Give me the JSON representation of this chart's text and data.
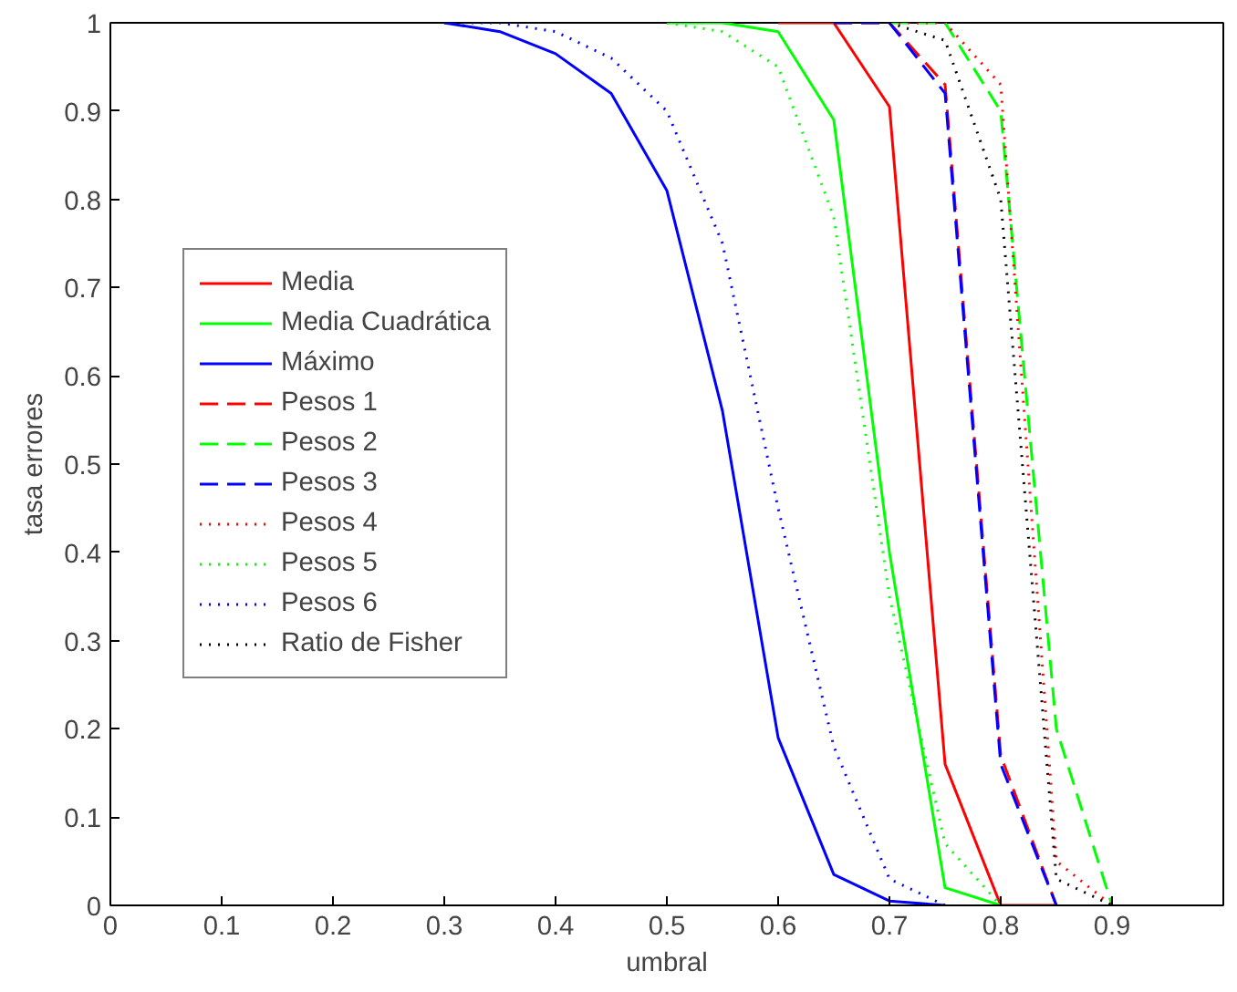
{
  "chart_data": {
    "type": "line",
    "xlabel": "umbral",
    "ylabel": "tasa errores",
    "xlim": [
      0,
      1
    ],
    "ylim": [
      0,
      1
    ],
    "xticks": [
      0,
      0.1,
      0.2,
      0.3,
      0.4,
      0.5,
      0.6,
      0.7,
      0.8,
      0.9
    ],
    "yticks": [
      0,
      0.1,
      0.2,
      0.3,
      0.4,
      0.5,
      0.6,
      0.7,
      0.8,
      0.9,
      1
    ],
    "grid": false,
    "legend": "left",
    "x": [
      0.3,
      0.35,
      0.4,
      0.45,
      0.5,
      0.55,
      0.6,
      0.65,
      0.7,
      0.75,
      0.8,
      0.85,
      0.9
    ],
    "series": [
      {
        "name": "Media",
        "color": "#ff0000",
        "line_style": "solid",
        "values": [
          null,
          null,
          null,
          null,
          null,
          null,
          1,
          1,
          0.905,
          0.16,
          0,
          0,
          null
        ]
      },
      {
        "name": "Media Cuadrática",
        "color": "#00ff00",
        "line_style": "solid",
        "values": [
          null,
          null,
          null,
          null,
          1,
          1,
          0.99,
          0.89,
          0.4,
          0.02,
          0,
          null,
          null
        ]
      },
      {
        "name": "Máximo",
        "color": "#0000ff",
        "line_style": "solid",
        "values": [
          1,
          0.99,
          0.965,
          0.92,
          0.81,
          0.56,
          0.19,
          0.035,
          0.005,
          0,
          null,
          null,
          null
        ]
      },
      {
        "name": "Pesos 1",
        "color": "#ff0000",
        "line_style": "dashed",
        "values": [
          null,
          null,
          null,
          null,
          null,
          null,
          null,
          1,
          1,
          0.93,
          0.17,
          0,
          null
        ]
      },
      {
        "name": "Pesos 2",
        "color": "#00ff00",
        "line_style": "dashed",
        "values": [
          null,
          null,
          null,
          null,
          null,
          null,
          null,
          null,
          1,
          1,
          0.9,
          0.2,
          0
        ]
      },
      {
        "name": "Pesos 3",
        "color": "#0000ff",
        "line_style": "dashed",
        "values": [
          null,
          null,
          null,
          null,
          null,
          null,
          null,
          1,
          1,
          0.92,
          0.16,
          0,
          null
        ]
      },
      {
        "name": "Pesos 4",
        "color": "#ff0000",
        "line_style": "dotted",
        "values": [
          null,
          null,
          null,
          null,
          null,
          null,
          null,
          null,
          1,
          1,
          0.93,
          0.05,
          0
        ]
      },
      {
        "name": "Pesos 5",
        "color": "#00ff00",
        "line_style": "dotted",
        "values": [
          null,
          null,
          null,
          null,
          1,
          0.99,
          0.95,
          0.78,
          0.35,
          0.07,
          0,
          null,
          null
        ]
      },
      {
        "name": "Pesos 6",
        "color": "#0000ff",
        "line_style": "dotted",
        "values": [
          1,
          1,
          0.99,
          0.96,
          0.9,
          0.75,
          0.45,
          0.18,
          0.03,
          0,
          null,
          null,
          null
        ]
      },
      {
        "name": "Ratio de Fisher",
        "color": "#000000",
        "line_style": "dotted",
        "values": [
          null,
          null,
          null,
          null,
          null,
          null,
          null,
          null,
          1,
          0.98,
          0.8,
          0.03,
          0
        ]
      }
    ]
  }
}
